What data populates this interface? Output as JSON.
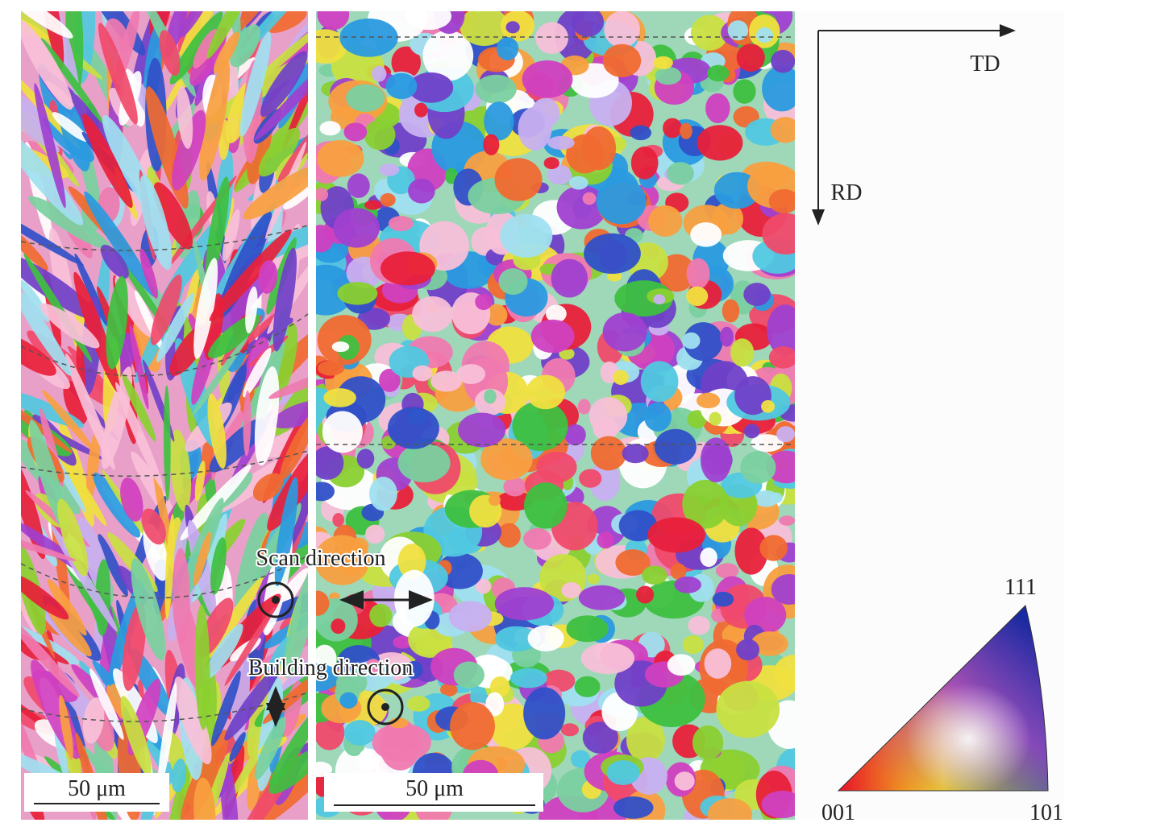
{
  "axes": {
    "td": "TD",
    "rd": "RD"
  },
  "annotations": {
    "scan_direction": "Scan direction",
    "building_direction": "Building direction"
  },
  "panels": [
    {
      "scale_bar": "50 μm"
    },
    {
      "scale_bar": "50 μm"
    }
  ],
  "ipf_legend": {
    "top": "111",
    "left": "001",
    "right": "101"
  }
}
